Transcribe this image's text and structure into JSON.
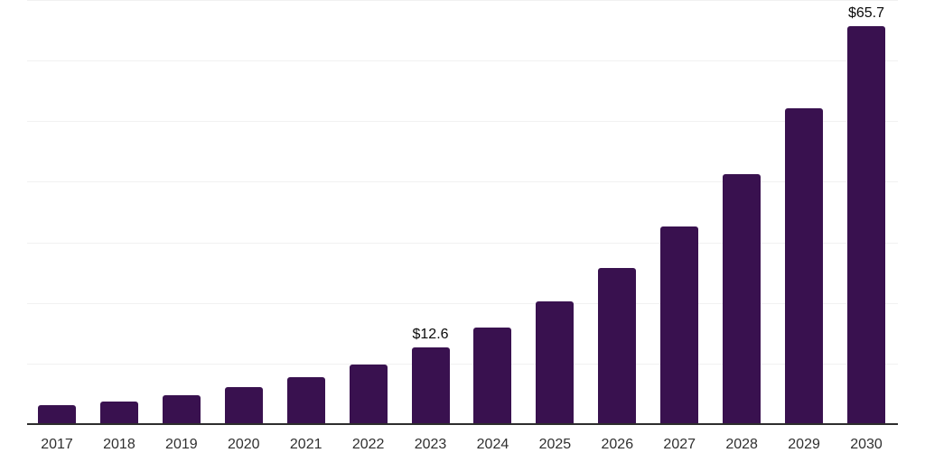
{
  "chart_data": {
    "type": "bar",
    "title": "",
    "xlabel": "",
    "ylabel": "",
    "categories": [
      "2017",
      "2018",
      "2019",
      "2020",
      "2021",
      "2022",
      "2023",
      "2024",
      "2025",
      "2026",
      "2027",
      "2028",
      "2029",
      "2030"
    ],
    "values": [
      3.1,
      3.8,
      4.8,
      6.1,
      7.7,
      9.8,
      12.6,
      16.0,
      20.3,
      25.7,
      32.6,
      41.3,
      52.1,
      65.7
    ],
    "data_labels": [
      "",
      "",
      "",
      "",
      "",
      "",
      "$12.6",
      "",
      "",
      "",
      "",
      "",
      "",
      "$65.7"
    ],
    "ylim": [
      0,
      70
    ],
    "grid": {
      "horizontal": true,
      "step": 10,
      "y_tick_labels_visible": false
    },
    "legend": "none"
  },
  "colors": {
    "bar": "#39114F",
    "gridline": "#f1f1f1",
    "axis_line": "#2d2d2d",
    "tick_label": "#303030",
    "value_label": "#0a0a0a",
    "background": "#ffffff"
  }
}
